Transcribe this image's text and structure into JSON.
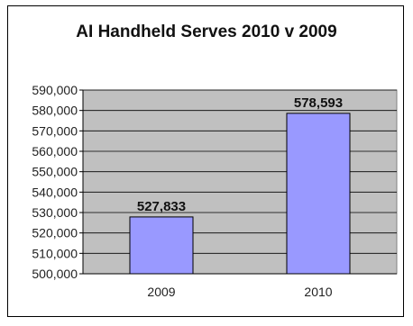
{
  "chart_data": {
    "type": "bar",
    "title": "AI Handheld Serves 2010 v 2009",
    "categories": [
      "2009",
      "2010"
    ],
    "values": [
      527833,
      578593
    ],
    "data_labels": [
      "527,833",
      "578,593"
    ],
    "ylim": [
      500000,
      590000
    ],
    "yticks": [
      "500,000",
      "510,000",
      "520,000",
      "530,000",
      "540,000",
      "550,000",
      "560,000",
      "570,000",
      "580,000",
      "590,000"
    ],
    "grid": true,
    "legend": "none",
    "colors": {
      "bar": "#9999ff",
      "plot_bg": "#c0c0c0"
    }
  }
}
